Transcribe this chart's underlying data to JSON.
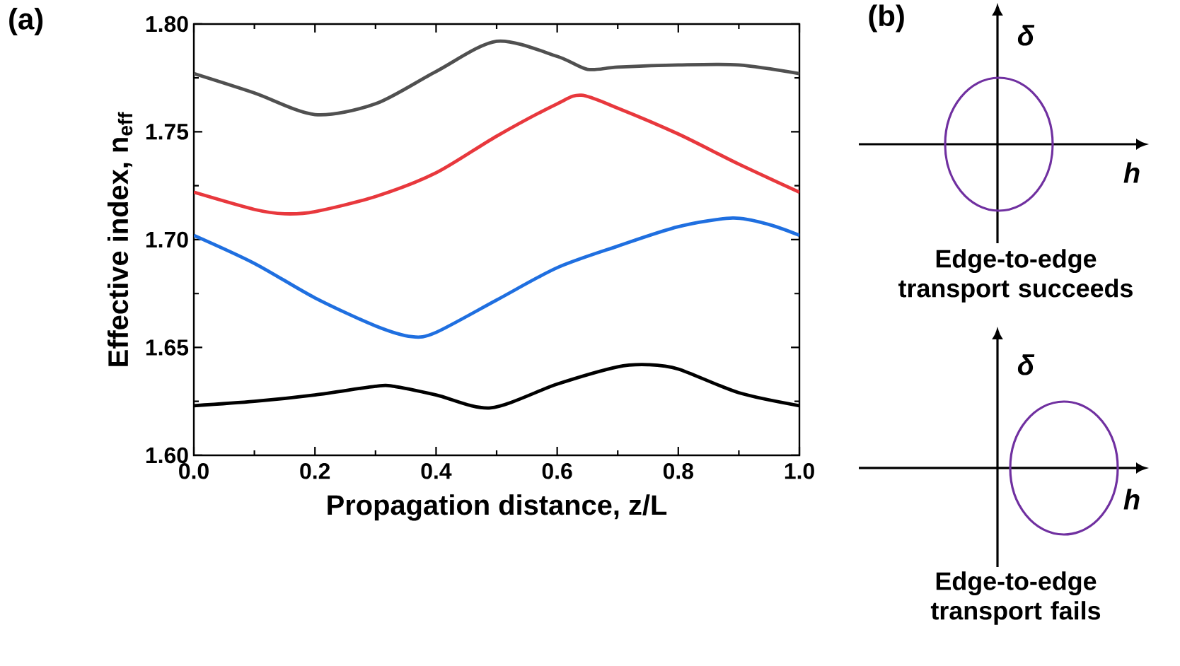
{
  "chart_data": [
    {
      "type": "line",
      "xlabel": "Propagation distance, z/L",
      "ylabel": "Effective index, n$_{eff}$",
      "annotations": [
        "(a)"
      ],
      "xlim": [
        0,
        1
      ],
      "ylim": [
        1.6,
        1.8
      ],
      "xticks": [
        {
          "value": 0,
          "label": "0.0"
        },
        {
          "value": 0.2,
          "label": "0.2"
        },
        {
          "value": 0.4,
          "label": "0.4"
        },
        {
          "value": 0.6,
          "label": "0.6"
        },
        {
          "value": 0.8,
          "label": "0.8"
        },
        {
          "value": 1,
          "label": "1.0"
        }
      ],
      "yticks": [
        {
          "value": 1.6,
          "label": "1.60"
        },
        {
          "value": 1.65,
          "label": "1.65"
        },
        {
          "value": 1.7,
          "label": "1.70"
        },
        {
          "value": 1.75,
          "label": "1.75"
        },
        {
          "value": 1.8,
          "label": "1.80"
        }
      ],
      "series": [
        {
          "color": "#505050",
          "x": [
            0,
            0.1,
            0.2,
            0.3,
            0.4,
            0.5,
            0.6,
            0.65,
            0.7,
            0.8,
            0.9,
            1.0
          ],
          "values": [
            1.777,
            1.768,
            1.758,
            1.763,
            1.778,
            1.792,
            1.785,
            1.779,
            1.78,
            1.781,
            1.781,
            1.777
          ]
        },
        {
          "color": "#e8383d",
          "x": [
            0,
            0.1,
            0.15,
            0.2,
            0.3,
            0.4,
            0.5,
            0.6,
            0.64,
            0.7,
            0.8,
            0.9,
            1.0
          ],
          "values": [
            1.722,
            1.714,
            1.712,
            1.713,
            1.72,
            1.731,
            1.748,
            1.763,
            1.767,
            1.761,
            1.749,
            1.735,
            1.722
          ]
        },
        {
          "color": "#1f6fe0",
          "x": [
            0,
            0.1,
            0.2,
            0.3,
            0.36,
            0.4,
            0.5,
            0.6,
            0.7,
            0.8,
            0.89,
            0.95,
            1.0
          ],
          "values": [
            1.702,
            1.689,
            1.673,
            1.66,
            1.655,
            1.657,
            1.672,
            1.687,
            1.697,
            1.706,
            1.71,
            1.707,
            1.702
          ]
        },
        {
          "color": "#000000",
          "x": [
            0,
            0.1,
            0.2,
            0.3,
            0.33,
            0.4,
            0.49,
            0.6,
            0.7,
            0.75,
            0.8,
            0.9,
            1.0
          ],
          "values": [
            1.623,
            1.625,
            1.628,
            1.632,
            1.632,
            1.628,
            1.622,
            1.633,
            1.641,
            1.642,
            1.64,
            1.629,
            1.623
          ]
        }
      ]
    },
    {
      "type": "other",
      "annotations": [
        "(b)",
        "δ",
        "h",
        "Edge-to-edge transport succeeds",
        "δ",
        "h",
        "Edge-to-edge transport fails"
      ]
    }
  ]
}
